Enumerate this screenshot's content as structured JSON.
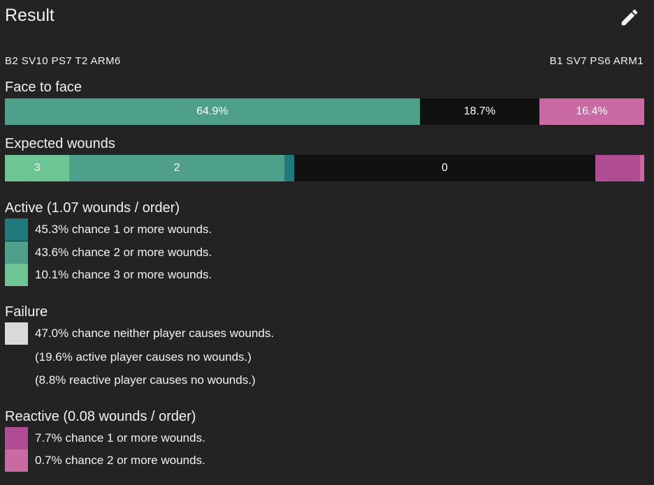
{
  "header": {
    "title": "Result",
    "edit_icon": "pencil-icon"
  },
  "stats": {
    "left": "B2 SV10 PS7 T2 ARM6",
    "right": "B1 SV7 PS6 ARM1"
  },
  "face_to_face": {
    "label": "Face to face",
    "segments": [
      {
        "text": "64.9%",
        "fraction": 0.649,
        "color": "#4ea08a"
      },
      {
        "text": "18.7%",
        "fraction": 0.187,
        "color": "#111111"
      },
      {
        "text": "16.4%",
        "fraction": 0.164,
        "color": "#c96aa2"
      }
    ]
  },
  "expected_wounds": {
    "label": "Expected wounds",
    "segments": [
      {
        "text": "3",
        "fraction": 0.101,
        "color": "#6cc592"
      },
      {
        "text": "2",
        "fraction": 0.336,
        "color": "#4ea08a"
      },
      {
        "text": "",
        "fraction": 0.016,
        "color": "#207a7c"
      },
      {
        "text": "0",
        "fraction": 0.47,
        "color": "#111111"
      },
      {
        "text": "",
        "fraction": 0.07,
        "color": "#b04c92"
      },
      {
        "text": "",
        "fraction": 0.007,
        "color": "#c96aa2"
      }
    ]
  },
  "active": {
    "label": "Active (1.07 wounds / order)",
    "items": [
      {
        "text": "45.3% chance 1 or more wounds.",
        "color": "#207a7c"
      },
      {
        "text": "43.6% chance 2 or more wounds.",
        "color": "#4ea08a"
      },
      {
        "text": "10.1% chance 3 or more wounds.",
        "color": "#6cc592"
      }
    ]
  },
  "failure": {
    "label": "Failure",
    "items": [
      {
        "text": "47.0% chance neither player causes wounds.",
        "color": "#d9d9d9"
      }
    ],
    "notes": [
      "(19.6% active player causes no wounds.)",
      "(8.8% reactive player causes no wounds.)"
    ]
  },
  "reactive": {
    "label": "Reactive (0.08 wounds / order)",
    "items": [
      {
        "text": "7.7% chance 1 or more wounds.",
        "color": "#b04c92"
      },
      {
        "text": "0.7% chance 2 or more wounds.",
        "color": "#c96aa2"
      }
    ]
  }
}
